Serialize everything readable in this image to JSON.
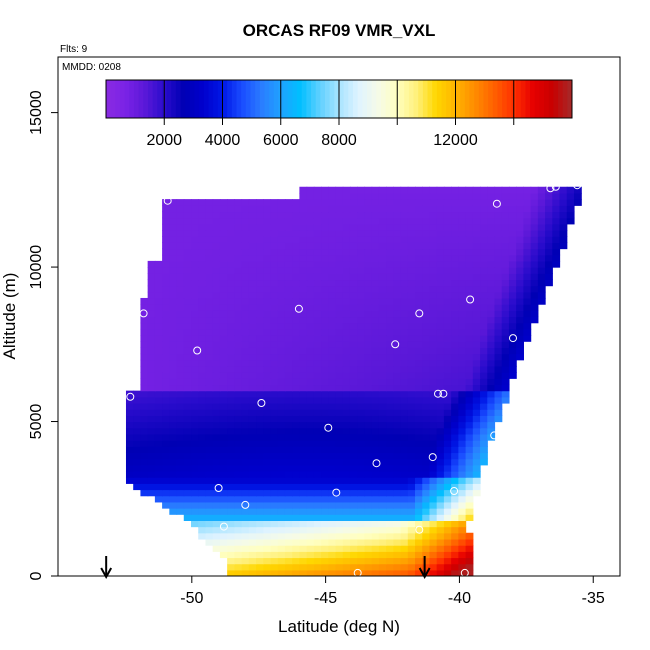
{
  "chart_data": {
    "type": "heatmap",
    "title": "ORCAS RF09 VMR_VXL",
    "xlabel": "Latitude (deg N)",
    "ylabel": "Altitude (m)",
    "xlim": [
      -55,
      -34
    ],
    "ylim": [
      0,
      16800
    ],
    "x_ticks": [
      -50,
      -45,
      -40,
      -35
    ],
    "y_ticks": [
      0,
      5000,
      10000,
      15000
    ],
    "annotations": {
      "flights": "Flts: 9",
      "mmdd": "MMDD: 0208"
    },
    "colorbar": {
      "range": [
        0,
        16000
      ],
      "ticks": [
        2000,
        4000,
        6000,
        8000,
        12000
      ],
      "colors": [
        "#8a2be2",
        "#7b23e6",
        "#5a18d8",
        "#2a0ccc",
        "#0000b4",
        "#0000cd",
        "#0018e6",
        "#1a4cff",
        "#2a7cff",
        "#1fa2ff",
        "#00bfff",
        "#5fd0ff",
        "#a8e4ff",
        "#dff3ff",
        "#f5fbe8",
        "#ffffc0",
        "#fff07a",
        "#ffd700",
        "#ffb400",
        "#ff8c00",
        "#ff6000",
        "#ff3000",
        "#e60000",
        "#c80000",
        "#a52a2a"
      ]
    },
    "flight_points": [
      [
        -50.9,
        12150
      ],
      [
        -38.6,
        12050
      ],
      [
        -36.6,
        12550
      ],
      [
        -36.4,
        12600
      ],
      [
        -35.6,
        12650
      ],
      [
        -35.1,
        12650
      ],
      [
        -51.8,
        8500
      ],
      [
        -46.0,
        8650
      ],
      [
        -41.5,
        8500
      ],
      [
        -39.6,
        8950
      ],
      [
        -38.0,
        7700
      ],
      [
        -49.8,
        7300
      ],
      [
        -42.4,
        7500
      ],
      [
        -52.3,
        5800
      ],
      [
        -47.4,
        5600
      ],
      [
        -40.8,
        5900
      ],
      [
        -40.6,
        5900
      ],
      [
        -44.9,
        4800
      ],
      [
        -38.7,
        4550
      ],
      [
        -41.0,
        3850
      ],
      [
        -43.1,
        3650
      ],
      [
        -49.0,
        2850
      ],
      [
        -44.6,
        2700
      ],
      [
        -40.2,
        2750
      ],
      [
        -48.0,
        2300
      ],
      [
        -48.8,
        1600
      ],
      [
        -41.5,
        1500
      ],
      [
        -43.8,
        100
      ],
      [
        -39.8,
        100
      ]
    ],
    "arrows_lat": [
      -53.2,
      -41.3
    ]
  }
}
